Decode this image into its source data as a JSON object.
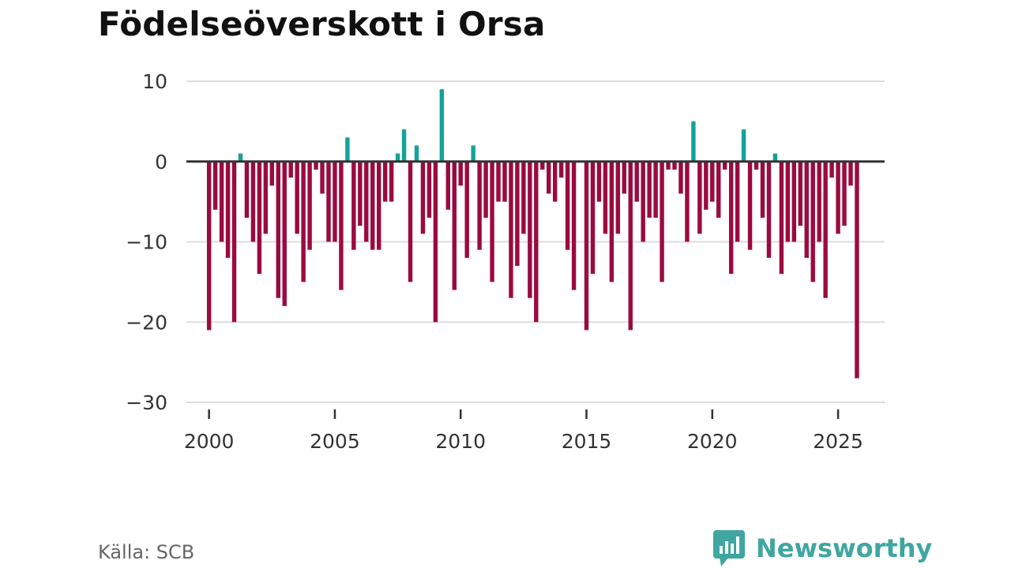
{
  "title": "Födelseöverskott i Orsa",
  "source": "Källa: SCB",
  "brand": {
    "name": "Newsworthy",
    "icon": "newsworthy-logo-icon"
  },
  "colors": {
    "positive": "#13a398",
    "negative": "#9b0a3f",
    "grid": "#dddddd",
    "baseline": "#333333"
  },
  "chart_data": {
    "type": "bar",
    "title": "Födelseöverskott i Orsa",
    "xlabel": "",
    "ylabel": "",
    "ylim": [
      -30,
      10
    ],
    "xlim": [
      1999.1,
      2026.85
    ],
    "y_ticks": [
      10,
      0,
      -10,
      -20,
      -30
    ],
    "y_tick_labels": [
      "10",
      "0",
      "−10",
      "−20",
      "−30"
    ],
    "x_ticks": [
      2000,
      2005,
      2010,
      2015,
      2020,
      2025
    ],
    "x_tick_labels": [
      "2000",
      "2005",
      "2010",
      "2015",
      "2020",
      "2025"
    ],
    "grid": true,
    "frequency": "quarterly",
    "start_period": "2000-Q1",
    "values": [
      -21,
      -6,
      -10,
      -12,
      -20,
      1,
      -7,
      -10,
      -14,
      -9,
      -3,
      -17,
      -18,
      -2,
      -9,
      -15,
      -11,
      -1,
      -4,
      -10,
      -10,
      -16,
      3,
      -11,
      -8,
      -10,
      -11,
      -11,
      -5,
      -5,
      1,
      4,
      -15,
      2,
      -9,
      -7,
      -20,
      9,
      -6,
      -16,
      -3,
      -12,
      2,
      -11,
      -7,
      -15,
      -5,
      -5,
      -17,
      -13,
      -9,
      -17,
      -20,
      -1,
      -4,
      -5,
      -2,
      -11,
      -16,
      0,
      -21,
      -14,
      -5,
      -9,
      -15,
      -9,
      -4,
      -21,
      -5,
      -10,
      -7,
      -7,
      -15,
      -1,
      -1,
      -4,
      -10,
      5,
      -9,
      -6,
      -5,
      -7,
      -1,
      -14,
      -10,
      4,
      -11,
      -1,
      -7,
      -12,
      1,
      -14,
      -10,
      -10,
      -8,
      -12,
      -15,
      -10,
      -17,
      -2,
      -9,
      -8,
      -3,
      -27
    ]
  }
}
